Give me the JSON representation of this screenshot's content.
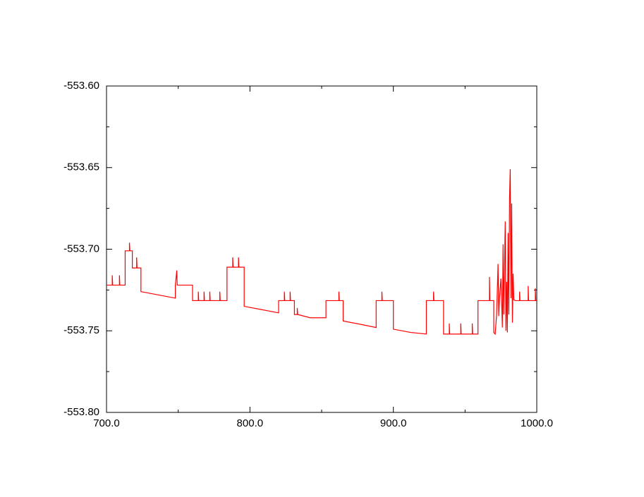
{
  "chart_data": {
    "type": "line",
    "color": "#ff0000",
    "xlim": [
      700,
      1000
    ],
    "ylim": [
      -553.8,
      -553.6
    ],
    "xticks": [
      {
        "value": 700,
        "label": "700.0"
      },
      {
        "value": 800,
        "label": "800.0"
      },
      {
        "value": 900,
        "label": "900.0"
      },
      {
        "value": 1000,
        "label": "1000.0"
      }
    ],
    "xticks_minor": [
      750,
      850,
      950
    ],
    "yticks": [
      {
        "value": -553.8,
        "label": "-553.80"
      },
      {
        "value": -553.75,
        "label": "-553.75"
      },
      {
        "value": -553.7,
        "label": "-553.70"
      },
      {
        "value": -553.65,
        "label": "-553.65"
      },
      {
        "value": -553.6,
        "label": "-553.60"
      }
    ],
    "yticks_minor": [
      -553.775,
      -553.725,
      -553.675,
      -553.625
    ],
    "x": [
      700,
      704,
      704,
      704.3,
      709,
      709,
      709.3,
      713,
      713,
      716,
      716,
      716.3,
      718,
      718,
      721,
      721,
      721.3,
      724,
      724,
      736,
      748,
      748,
      749,
      749.3,
      760,
      760,
      764,
      764,
      764.3,
      768,
      768,
      768.3,
      772,
      772,
      772.3,
      779,
      779,
      779.3,
      784,
      784,
      788,
      788,
      788.3,
      792,
      792,
      792.3,
      796,
      796,
      808,
      820,
      820,
      824,
      824,
      824.3,
      828,
      828,
      828.3,
      831,
      831,
      833,
      833,
      833.3,
      842,
      853,
      853,
      862,
      862,
      862.3,
      865,
      865,
      877,
      888,
      888,
      892,
      892,
      892.3,
      900,
      900,
      912,
      923,
      923,
      928,
      928,
      928.3,
      935,
      935,
      939,
      939,
      939.3,
      947,
      947,
      947.3,
      955,
      955,
      955.3,
      959,
      959,
      967,
      967,
      967.3,
      970,
      970,
      971,
      972,
      973,
      973.5,
      974,
      975,
      976,
      976.5,
      977,
      978,
      978.5,
      979,
      979.5,
      980,
      980.5,
      981,
      981.5,
      982,
      982.5,
      983,
      983.5,
      984,
      985,
      988,
      988,
      988.3,
      994,
      994,
      994.3,
      999,
      999,
      999.3,
      1000
    ],
    "values": [
      -553.722,
      -553.722,
      -553.716,
      -553.722,
      -553.722,
      -553.716,
      -553.722,
      -553.722,
      -553.701,
      -553.701,
      -553.696,
      -553.701,
      -553.701,
      -553.7115,
      -553.7115,
      -553.705,
      -553.7115,
      -553.7115,
      -553.726,
      -553.728,
      -553.73,
      -553.722,
      -553.713,
      -553.722,
      -553.722,
      -553.7315,
      -553.7315,
      -553.726,
      -553.7315,
      -553.7315,
      -553.726,
      -553.7315,
      -553.7315,
      -553.726,
      -553.7315,
      -553.7315,
      -553.726,
      -553.7315,
      -553.7315,
      -553.711,
      -553.711,
      -553.705,
      -553.711,
      -553.711,
      -553.705,
      -553.711,
      -553.711,
      -553.735,
      -553.737,
      -553.739,
      -553.7315,
      -553.7315,
      -553.726,
      -553.7315,
      -553.7315,
      -553.726,
      -553.7315,
      -553.7315,
      -553.74,
      -553.74,
      -553.736,
      -553.74,
      -553.742,
      -553.742,
      -553.7315,
      -553.7315,
      -553.726,
      -553.7315,
      -553.7315,
      -553.744,
      -553.746,
      -553.748,
      -553.7315,
      -553.7315,
      -553.726,
      -553.7315,
      -553.7315,
      -553.749,
      -553.751,
      -553.752,
      -553.7315,
      -553.7315,
      -553.726,
      -553.7315,
      -553.7315,
      -553.752,
      -553.752,
      -553.7455,
      -553.752,
      -553.752,
      -553.7455,
      -553.752,
      -553.752,
      -553.7455,
      -553.752,
      -553.752,
      -553.7315,
      -553.7315,
      -553.717,
      -553.7315,
      -553.7315,
      -553.751,
      -553.752,
      -553.74,
      -553.709,
      -553.741,
      -553.73,
      -553.718,
      -553.748,
      -553.697,
      -553.74,
      -553.683,
      -553.75,
      -553.72,
      -553.751,
      -553.69,
      -553.74,
      -553.669,
      -553.651,
      -553.73,
      -553.672,
      -553.745,
      -553.715,
      -553.731,
      -553.7315,
      -553.7315,
      -553.726,
      -553.7315,
      -553.7315,
      -553.7225,
      -553.7315,
      -553.7315,
      -553.724,
      -553.7315,
      -553.7315
    ]
  }
}
